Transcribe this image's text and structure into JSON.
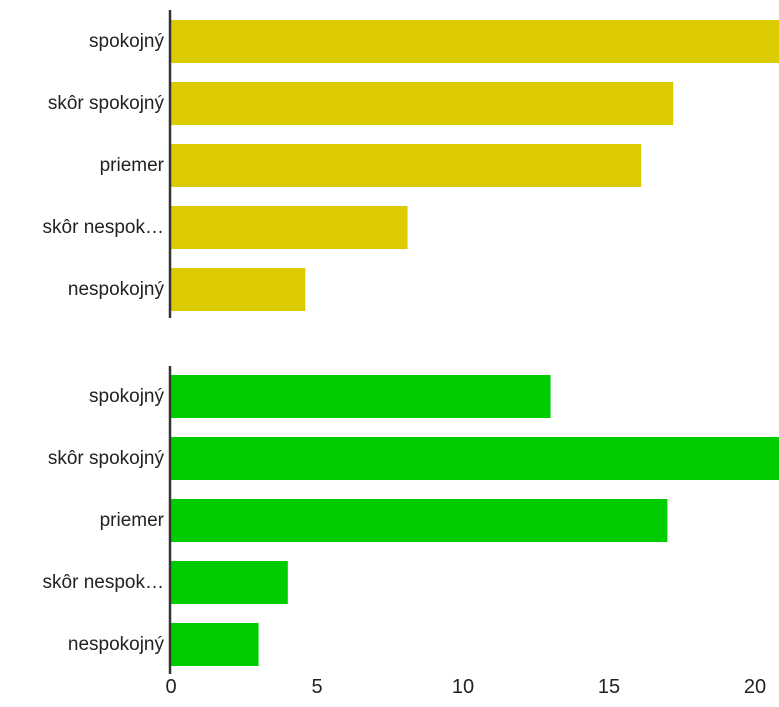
{
  "chart_data": [
    {
      "type": "bar",
      "orientation": "horizontal",
      "categories": [
        "spokojný",
        "skôr spokojný",
        "priemer",
        "skôr nespok…",
        "nespokojný"
      ],
      "series": [
        {
          "values": [
            21,
            17.2,
            16.1,
            8.1,
            4.6
          ]
        }
      ],
      "color": "#dbcb00",
      "xlim": [
        0,
        20.6
      ],
      "grid": false
    },
    {
      "type": "bar",
      "orientation": "horizontal",
      "categories": [
        "spokojný",
        "skôr spokojný",
        "priemer",
        "skôr nespok…",
        "nespokojný"
      ],
      "series": [
        {
          "values": [
            13,
            21,
            17,
            4,
            3
          ]
        }
      ],
      "color": "#00cc00",
      "xlim": [
        0,
        20.6
      ],
      "xticks": [
        "0",
        "5",
        "10",
        "15",
        "20"
      ],
      "grid": false
    }
  ]
}
